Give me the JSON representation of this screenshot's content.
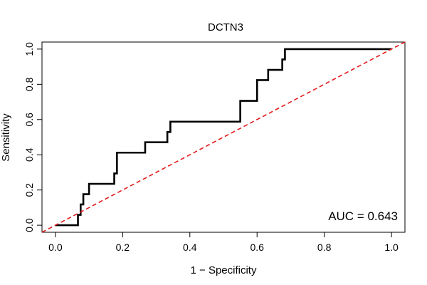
{
  "chart_data": {
    "type": "line",
    "title": "DCTN3",
    "xlabel": "1 − Specificity",
    "ylabel": "Sensitivity",
    "xlim": [
      -0.04,
      1.04
    ],
    "ylim": [
      -0.04,
      1.04
    ],
    "x_ticks": [
      0.0,
      0.2,
      0.4,
      0.6,
      0.8,
      1.0
    ],
    "x_tick_labels": [
      "0.0",
      "0.2",
      "0.4",
      "0.6",
      "0.8",
      "1.0"
    ],
    "y_ticks": [
      0.0,
      0.2,
      0.4,
      0.6,
      0.8,
      1.0
    ],
    "y_tick_labels": [
      "0.0",
      "0.2",
      "0.4",
      "0.6",
      "0.8",
      "1.0"
    ],
    "grid": false,
    "annotation": "AUC = 0.643",
    "series": [
      {
        "color": "#000000",
        "style": "solid",
        "x": [
          0.0,
          0.067,
          0.067,
          0.075,
          0.075,
          0.083,
          0.083,
          0.1,
          0.1,
          0.175,
          0.175,
          0.183,
          0.183,
          0.267,
          0.267,
          0.333,
          0.333,
          0.342,
          0.342,
          0.55,
          0.55,
          0.6,
          0.6,
          0.633,
          0.633,
          0.675,
          0.675,
          0.683,
          0.683,
          1.0
        ],
        "y": [
          0.0,
          0.0,
          0.059,
          0.059,
          0.118,
          0.118,
          0.176,
          0.176,
          0.235,
          0.235,
          0.294,
          0.294,
          0.412,
          0.412,
          0.471,
          0.471,
          0.529,
          0.529,
          0.588,
          0.588,
          0.706,
          0.706,
          0.824,
          0.824,
          0.882,
          0.882,
          0.941,
          0.941,
          1.0,
          1.0
        ]
      },
      {
        "color": "#e31a1c",
        "style": "dashed",
        "x": [
          -0.04,
          1.04
        ],
        "y": [
          -0.04,
          1.04
        ]
      }
    ]
  }
}
